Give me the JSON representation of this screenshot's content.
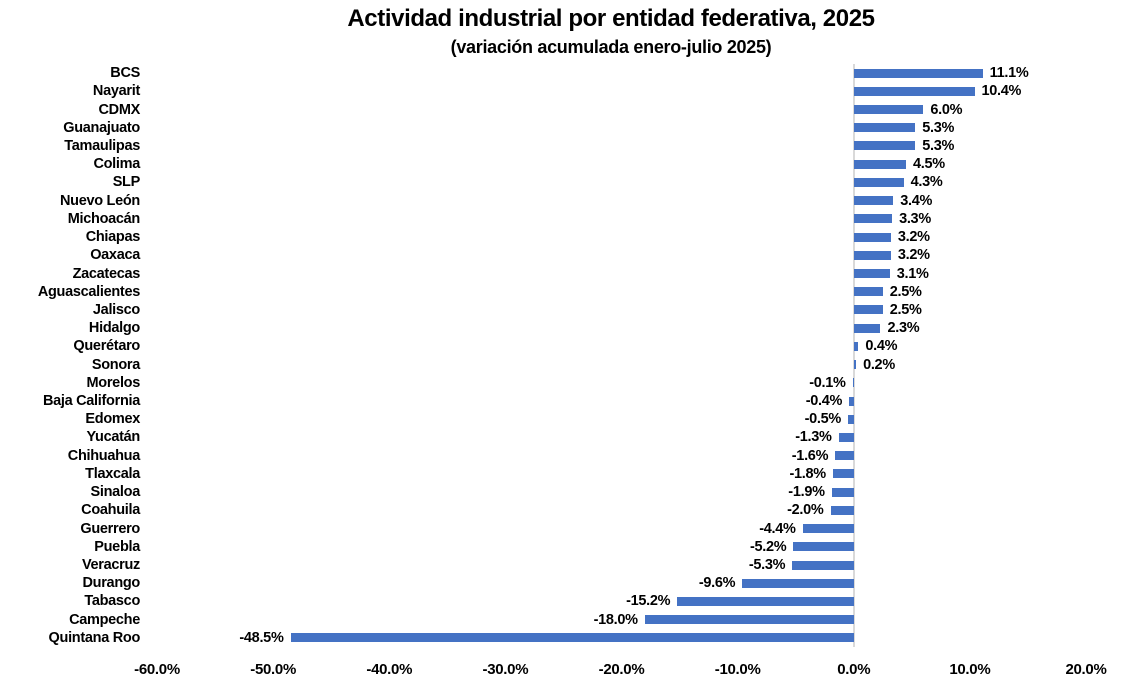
{
  "chart_data": {
    "type": "bar",
    "orientation": "horizontal",
    "title": "Actividad industrial por entidad federativa, 2025",
    "subtitle": "(variación acumulada enero-julio 2025)",
    "xlabel": "",
    "ylabel": "",
    "xlim": [
      -60,
      20
    ],
    "x_tick_values": [
      -60,
      -50,
      -40,
      -30,
      -20,
      -10,
      0,
      10,
      20
    ],
    "x_tick_labels": [
      "-60.0%",
      "-50.0%",
      "-40.0%",
      "-30.0%",
      "-20.0%",
      "-10.0%",
      "0.0%",
      "10.0%",
      "20.0%"
    ],
    "grid": false,
    "legend": false,
    "bar_color": "#4472C4",
    "axis_line_color": "#D9D9D9",
    "text_color": "#000000",
    "categories": [
      "BCS",
      "Nayarit",
      "CDMX",
      "Guanajuato",
      "Tamaulipas",
      "Colima",
      "SLP",
      "Nuevo León",
      "Michoacán",
      "Chiapas",
      "Oaxaca",
      "Zacatecas",
      "Aguascalientes",
      "Jalisco",
      "Hidalgo",
      "Querétaro",
      "Sonora",
      "Morelos",
      "Baja California",
      "Edomex",
      "Yucatán",
      "Chihuahua",
      "Tlaxcala",
      "Sinaloa",
      "Coahuila",
      "Guerrero",
      "Puebla",
      "Veracruz",
      "Durango",
      "Tabasco",
      "Campeche",
      "Quintana Roo"
    ],
    "values": [
      11.1,
      10.4,
      6.0,
      5.3,
      5.3,
      4.5,
      4.3,
      3.4,
      3.3,
      3.2,
      3.2,
      3.1,
      2.5,
      2.5,
      2.3,
      0.4,
      0.2,
      -0.1,
      -0.4,
      -0.5,
      -1.3,
      -1.6,
      -1.8,
      -1.9,
      -2.0,
      -4.4,
      -5.2,
      -5.3,
      -9.6,
      -15.2,
      -18.0,
      -48.5
    ],
    "value_labels": [
      "11.1%",
      "10.4%",
      "6.0%",
      "5.3%",
      "5.3%",
      "4.5%",
      "4.3%",
      "3.4%",
      "3.3%",
      "3.2%",
      "3.2%",
      "3.1%",
      "2.5%",
      "2.5%",
      "2.3%",
      "0.4%",
      "0.2%",
      "-0.1%",
      "-0.4%",
      "-0.5%",
      "-1.3%",
      "-1.6%",
      "-1.8%",
      "-1.9%",
      "-2.0%",
      "-4.4%",
      "-5.2%",
      "-5.3%",
      "-9.6%",
      "-15.2%",
      "-18.0%",
      "-48.5%"
    ]
  }
}
